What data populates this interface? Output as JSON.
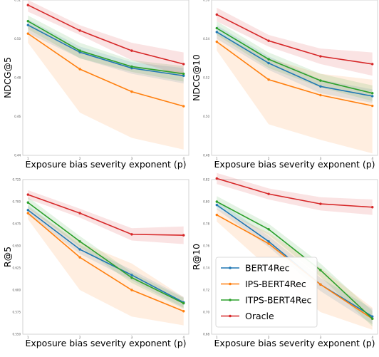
{
  "xlabel": "Exposure bias severity exponent (p)",
  "series_colors": {
    "BERT4Rec": "#1f77b4",
    "IPS-BERT4Rec": "#ff7f0e",
    "ITPS-BERT4Rec": "#2ca02c",
    "Oracle": "#d62728"
  },
  "legend": [
    "BERT4Rec",
    "IPS-BERT4Rec",
    "ITPS-BERT4Rec",
    "Oracle"
  ],
  "chart_data": [
    {
      "type": "line",
      "ylabel": "NDCG@5",
      "x": [
        1,
        2,
        3,
        4
      ],
      "xticks": [
        "1",
        "2",
        "3",
        "4"
      ],
      "ylim": [
        0.44,
        0.52
      ],
      "yticks": [
        "0.44",
        "0.46",
        "0.48",
        "0.50",
        "0.52"
      ],
      "legend_placement": "none",
      "series": [
        {
          "name": "BERT4Rec",
          "values": [
            0.5071,
            0.4931,
            0.4849,
            0.481
          ],
          "lower": [
            0.503,
            0.49,
            0.482,
            0.477
          ],
          "upper": [
            0.51,
            0.496,
            0.488,
            0.485
          ]
        },
        {
          "name": "IPS-BERT4Rec",
          "values": [
            0.5027,
            0.4844,
            0.4728,
            0.4653
          ],
          "lower": [
            0.498,
            0.462,
            0.449,
            0.443
          ],
          "upper": [
            0.508,
            0.494,
            0.486,
            0.483
          ]
        },
        {
          "name": "ITPS-BERT4Rec",
          "values": [
            0.5091,
            0.4939,
            0.4857,
            0.482
          ],
          "lower": [
            0.505,
            0.49,
            0.483,
            0.478
          ],
          "upper": [
            0.512,
            0.498,
            0.489,
            0.486
          ]
        },
        {
          "name": "Oracle",
          "values": [
            0.5174,
            0.5043,
            0.4939,
            0.487
          ],
          "lower": [
            0.514,
            0.502,
            0.489,
            0.481
          ],
          "upper": [
            0.52,
            0.507,
            0.498,
            0.493
          ]
        }
      ]
    },
    {
      "type": "line",
      "ylabel": "NDCG@10",
      "x": [
        1,
        2,
        3,
        4
      ],
      "xticks": [
        "1",
        "2",
        "3",
        "4"
      ],
      "ylim": [
        0.48,
        0.56
      ],
      "yticks": [
        "0.48",
        "0.50",
        "0.52",
        "0.54",
        "0.56"
      ],
      "legend_placement": "none",
      "series": [
        {
          "name": "BERT4Rec",
          "values": [
            0.5435,
            0.5275,
            0.5155,
            0.5105
          ],
          "lower": [
            0.54,
            0.524,
            0.512,
            0.507
          ],
          "upper": [
            0.547,
            0.531,
            0.519,
            0.514
          ]
        },
        {
          "name": "IPS-BERT4Rec",
          "values": [
            0.5385,
            0.519,
            0.511,
            0.5055
          ],
          "lower": [
            0.534,
            0.496,
            0.488,
            0.481
          ],
          "upper": [
            0.543,
            0.53,
            0.522,
            0.519
          ]
        },
        {
          "name": "ITPS-BERT4Rec",
          "values": [
            0.5455,
            0.5295,
            0.5185,
            0.512
          ],
          "lower": [
            0.542,
            0.525,
            0.515,
            0.508
          ],
          "upper": [
            0.549,
            0.533,
            0.522,
            0.516
          ]
        },
        {
          "name": "Oracle",
          "values": [
            0.5525,
            0.539,
            0.531,
            0.527
          ],
          "lower": [
            0.549,
            0.536,
            0.527,
            0.521
          ],
          "upper": [
            0.556,
            0.542,
            0.535,
            0.533
          ]
        }
      ]
    },
    {
      "type": "line",
      "ylabel": "R@5",
      "x": [
        1,
        2,
        3,
        4
      ],
      "xticks": [
        "1",
        "2",
        "3",
        "4"
      ],
      "ylim": [
        0.55,
        0.725
      ],
      "yticks": [
        "0.550",
        "0.575",
        "0.600",
        "0.625",
        "0.650",
        "0.675",
        "0.700",
        "0.725"
      ],
      "legend_placement": "none",
      "series": [
        {
          "name": "BERT4Rec",
          "values": [
            0.6905,
            0.646,
            0.617,
            0.586
          ],
          "lower": [
            0.685,
            0.641,
            0.611,
            0.58
          ],
          "upper": [
            0.696,
            0.651,
            0.623,
            0.592
          ]
        },
        {
          "name": "IPS-BERT4Rec",
          "values": [
            0.687,
            0.637,
            0.6,
            0.576
          ],
          "lower": [
            0.68,
            0.6,
            0.57,
            0.56
          ],
          "upper": [
            0.694,
            0.654,
            0.63,
            0.592
          ]
        },
        {
          "name": "ITPS-BERT4Rec",
          "values": [
            0.699,
            0.655,
            0.614,
            0.585
          ],
          "lower": [
            0.693,
            0.649,
            0.608,
            0.579
          ],
          "upper": [
            0.705,
            0.661,
            0.62,
            0.591
          ]
        },
        {
          "name": "Oracle",
          "values": [
            0.708,
            0.687,
            0.663,
            0.662
          ],
          "lower": [
            0.703,
            0.682,
            0.656,
            0.652
          ],
          "upper": [
            0.713,
            0.692,
            0.67,
            0.672
          ]
        }
      ]
    },
    {
      "type": "line",
      "ylabel": "R@10",
      "x": [
        1,
        2,
        3,
        4
      ],
      "xticks": [
        "1",
        "2",
        "3",
        "4"
      ],
      "ylim": [
        0.68,
        0.82
      ],
      "yticks": [
        "0.68",
        "0.70",
        "0.72",
        "0.74",
        "0.76",
        "0.78",
        "0.80",
        "0.82"
      ],
      "legend_placement": "bottom-left",
      "series": [
        {
          "name": "BERT4Rec",
          "values": [
            0.797,
            0.764,
            0.725,
            0.696
          ],
          "lower": [
            0.793,
            0.759,
            0.719,
            0.689
          ],
          "upper": [
            0.801,
            0.769,
            0.731,
            0.703
          ]
        },
        {
          "name": "IPS-BERT4Rec",
          "values": [
            0.788,
            0.762,
            0.725,
            0.694
          ],
          "lower": [
            0.782,
            0.74,
            0.7,
            0.684
          ],
          "upper": [
            0.794,
            0.772,
            0.74,
            0.704
          ]
        },
        {
          "name": "ITPS-BERT4Rec",
          "values": [
            0.8,
            0.775,
            0.738,
            0.694
          ],
          "lower": [
            0.795,
            0.77,
            0.732,
            0.687
          ],
          "upper": [
            0.805,
            0.78,
            0.744,
            0.701
          ]
        },
        {
          "name": "Oracle",
          "values": [
            0.821,
            0.807,
            0.798,
            0.795
          ],
          "lower": [
            0.816,
            0.802,
            0.792,
            0.788
          ],
          "upper": [
            0.826,
            0.812,
            0.804,
            0.802
          ]
        }
      ]
    }
  ]
}
